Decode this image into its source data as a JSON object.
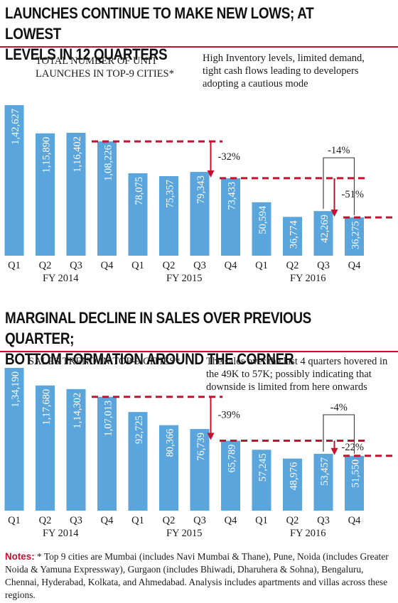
{
  "colors": {
    "bar": "#5aa5dc",
    "accent": "#c8102e",
    "text": "#1a1a1a",
    "bracket": "#444444"
  },
  "headline1": "LAUNCHES CONTINUE TO MAKE NEW LOWS; AT LOWEST\nLEVELS IN 12 QUARTERS",
  "headline2": "MARGINAL DECLINE IN SALES OVER PREVIOUS QUARTER;\nBOTTOM FORMATION AROUND THE CORNER",
  "chart_data": [
    {
      "type": "bar",
      "title": "TOTAL NUMBER OF UNIT LAUNCHES IN TOP-9 CITIES*",
      "title_lines": [
        "TOTAL NUMBER OF UNIT",
        "LAUNCHES IN TOP-9 CITIES*"
      ],
      "annotation_lines": [
        "High Inventory levels, limited demand,",
        "tight cash flows leading to developers",
        "adopting a cautious mode"
      ],
      "categories": [
        "Q1",
        "Q2",
        "Q3",
        "Q4",
        "Q1",
        "Q2",
        "Q3",
        "Q4",
        "Q1",
        "Q2",
        "Q3",
        "Q4"
      ],
      "fiscal_years": [
        "FY 2014",
        "FY 2015",
        "FY 2016"
      ],
      "values": [
        142627,
        115890,
        116402,
        108226,
        78075,
        75357,
        79343,
        73433,
        50594,
        36774,
        42269,
        36275
      ],
      "value_labels": [
        "1,42,627",
        "1,15,890",
        "1,16,402",
        "1,08,226",
        "78,075",
        "75,357",
        "79,343",
        "73,433",
        "50,594",
        "36,774",
        "42,269",
        "36,275"
      ],
      "ylim": [
        0,
        142627
      ],
      "comparisons": [
        {
          "from": 3,
          "to": 7,
          "label": "-32%",
          "style": "arrow"
        },
        {
          "from": 7,
          "to": 11,
          "label": "-51%",
          "style": "arrow"
        },
        {
          "from": 10,
          "to": 11,
          "label": "-14%",
          "style": "bracket"
        }
      ]
    },
    {
      "type": "bar",
      "title": "SALES TREND IN TOP-9 CITIES*",
      "title_lines": [
        "SALES TREND IN TOP-9 CITIES*"
      ],
      "annotation_lines": [
        "The sales over the last 4 quarters  hovered in",
        "the 49K to 57K; possibly indicating that",
        "downside is limited from here onwards"
      ],
      "categories": [
        "Q1",
        "Q2",
        "Q3",
        "Q4",
        "Q1",
        "Q2",
        "Q3",
        "Q4",
        "Q1",
        "Q2",
        "Q3",
        "Q4"
      ],
      "fiscal_years": [
        "FY 2014",
        "FY 2015",
        "FY 2016"
      ],
      "values": [
        134190,
        117680,
        114302,
        107013,
        92725,
        80366,
        76739,
        65789,
        57245,
        48976,
        53457,
        51550
      ],
      "value_labels": [
        "1,34,190",
        "1,17,680",
        "1,14,302",
        "1,07,013",
        "92,725",
        "80,366",
        "76,739",
        "65,789",
        "57,245",
        "48,976",
        "53,457",
        "51,550"
      ],
      "ylim": [
        0,
        134190
      ],
      "comparisons": [
        {
          "from": 3,
          "to": 7,
          "label": "-39%",
          "style": "arrow"
        },
        {
          "from": 7,
          "to": 11,
          "label": "-22%",
          "style": "arrow"
        },
        {
          "from": 10,
          "to": 11,
          "label": "-4%",
          "style": "bracket"
        }
      ]
    }
  ],
  "notes": {
    "label": "Notes:",
    "text": " * Top 9 cities are Mumbai (includes Navi Mumbai & Thane), Pune, Noida (includes Greater Noida & Yamuna Expressway), Gurgaon (includes Bhiwadi, Dharuhera & Sohna), Bengaluru, Chennai, Hyderabad, Kolkata, and Ahmedabad. Analysis includes apartments and villas across these regions."
  }
}
